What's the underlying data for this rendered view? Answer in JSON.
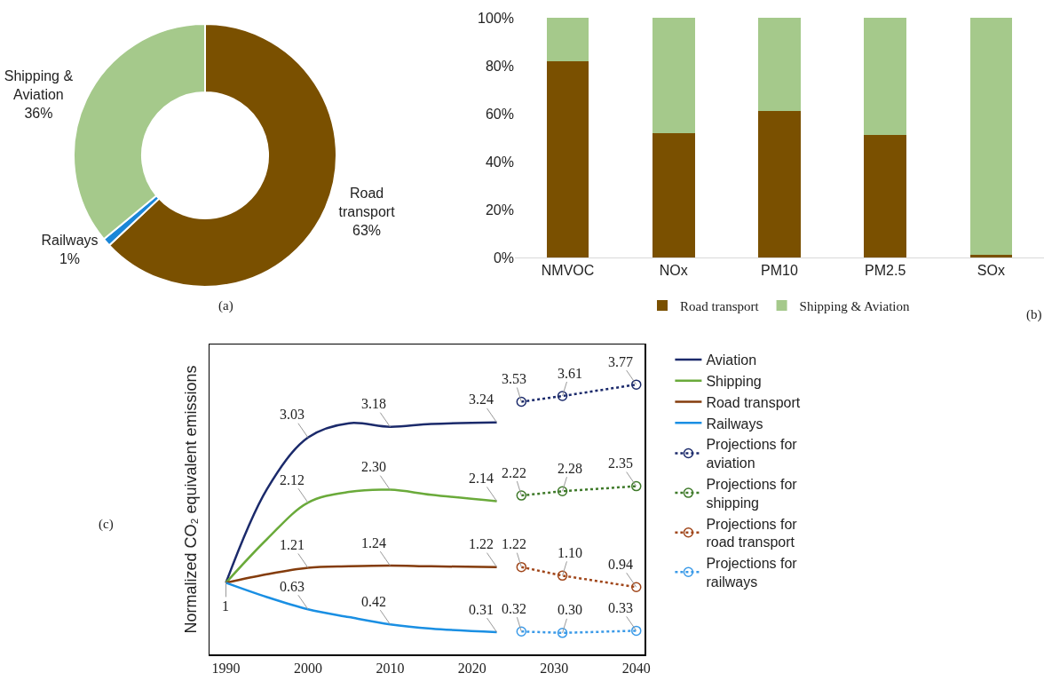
{
  "chart_data": [
    {
      "type": "donut",
      "categories": [
        "Road transport",
        "Railways",
        "Shipping & Aviation"
      ],
      "values": [
        63,
        1,
        36
      ],
      "colors": [
        "#7a5000",
        "#1a86d8",
        "#a5c98b"
      ],
      "value_labels": [
        "63%",
        "1%",
        "36%"
      ],
      "legend": false,
      "annotations": [
        "(a)"
      ]
    },
    {
      "type": "bar",
      "stacked": true,
      "categories": [
        "NMVOC",
        "NOx",
        "PM10",
        "PM2.5",
        "SOx"
      ],
      "series": [
        {
          "name": "Road transport",
          "color": "#7a5000",
          "values": [
            82,
            52,
            61,
            51,
            1
          ]
        },
        {
          "name": "Shipping & Aviation",
          "color": "#a5c98b",
          "values": [
            18,
            48,
            39,
            49,
            99
          ]
        }
      ],
      "ylim": [
        0,
        100
      ],
      "yticks": [
        {
          "value": 0,
          "label": "0%"
        },
        {
          "value": 20,
          "label": "20%"
        },
        {
          "value": 40,
          "label": "40%"
        },
        {
          "value": 60,
          "label": "60%"
        },
        {
          "value": 80,
          "label": "80%"
        },
        {
          "value": 100,
          "label": "100%"
        }
      ],
      "grid": false,
      "legend": "bottom",
      "annotations": [
        "(b)"
      ]
    },
    {
      "type": "line",
      "ylabel": "Normalized CO₂ equivalent emissions",
      "xlim": [
        1988,
        2041
      ],
      "xticks": [
        1990,
        2000,
        2010,
        2020,
        2030,
        2040
      ],
      "ylim": [
        0,
        4.33
      ],
      "tick_labels": "x",
      "grid": false,
      "legend": "right",
      "annotations": [
        "(c)"
      ],
      "series": [
        {
          "name": "Aviation",
          "color": "#1b2a6b",
          "line_style": "solid",
          "marker": "none",
          "x": [
            1990,
            1995,
            2000,
            2005,
            2010,
            2015,
            2023
          ],
          "values": [
            1,
            2.31,
            3.03,
            3.23,
            3.18,
            3.22,
            3.24
          ],
          "value_labels": [
            null,
            null,
            "3.03",
            null,
            "3.18",
            null,
            "3.24"
          ]
        },
        {
          "name": "Shipping",
          "color": "#6aaa3a",
          "line_style": "solid",
          "marker": "none",
          "x": [
            1990,
            1995,
            2000,
            2005,
            2010,
            2015,
            2023
          ],
          "values": [
            1,
            1.61,
            2.12,
            2.27,
            2.3,
            2.23,
            2.14
          ],
          "value_labels": [
            null,
            null,
            "2.12",
            null,
            "2.30",
            null,
            "2.14"
          ]
        },
        {
          "name": "Road transport",
          "color": "#843c0c",
          "line_style": "solid",
          "marker": "none",
          "x": [
            1990,
            1995,
            2000,
            2005,
            2010,
            2015,
            2023
          ],
          "values": [
            1,
            1.12,
            1.21,
            1.23,
            1.24,
            1.23,
            1.22
          ],
          "value_labels": [
            null,
            null,
            "1.21",
            null,
            "1.24",
            null,
            "1.22"
          ]
        },
        {
          "name": "Railways",
          "color": "#1a8fe3",
          "line_style": "solid",
          "marker": "none",
          "x": [
            1990,
            1995,
            2000,
            2005,
            2010,
            2015,
            2023
          ],
          "values": [
            1,
            0.8,
            0.63,
            0.52,
            0.42,
            0.36,
            0.31
          ],
          "value_labels": [
            "1",
            null,
            "0.63",
            null,
            "0.42",
            null,
            "0.31"
          ]
        },
        {
          "name": "Projections for aviation",
          "color": "#1b2a6b",
          "line_style": "dotted",
          "marker": "circle",
          "x": [
            2026,
            2031,
            2040
          ],
          "values": [
            3.53,
            3.61,
            3.77
          ],
          "value_labels": [
            "3.53",
            "3.61",
            "3.77"
          ]
        },
        {
          "name": "Projections for shipping",
          "color": "#3f7a2a",
          "line_style": "dotted",
          "marker": "circle",
          "x": [
            2026,
            2031,
            2040
          ],
          "values": [
            2.22,
            2.28,
            2.35
          ],
          "value_labels": [
            "2.22",
            "2.28",
            "2.35"
          ]
        },
        {
          "name": "Projections for road transport",
          "color": "#a0461a",
          "line_style": "dotted",
          "marker": "circle",
          "x": [
            2026,
            2031,
            2040
          ],
          "values": [
            1.22,
            1.1,
            0.94
          ],
          "value_labels": [
            "1.22",
            "1.10",
            "0.94"
          ]
        },
        {
          "name": "Projections for railways",
          "color": "#3a9ae8",
          "line_style": "dotted",
          "marker": "circle",
          "x": [
            2026,
            2031,
            2040
          ],
          "values": [
            0.32,
            0.3,
            0.33
          ],
          "value_labels": [
            "0.32",
            "0.30",
            "0.33"
          ]
        }
      ]
    }
  ]
}
